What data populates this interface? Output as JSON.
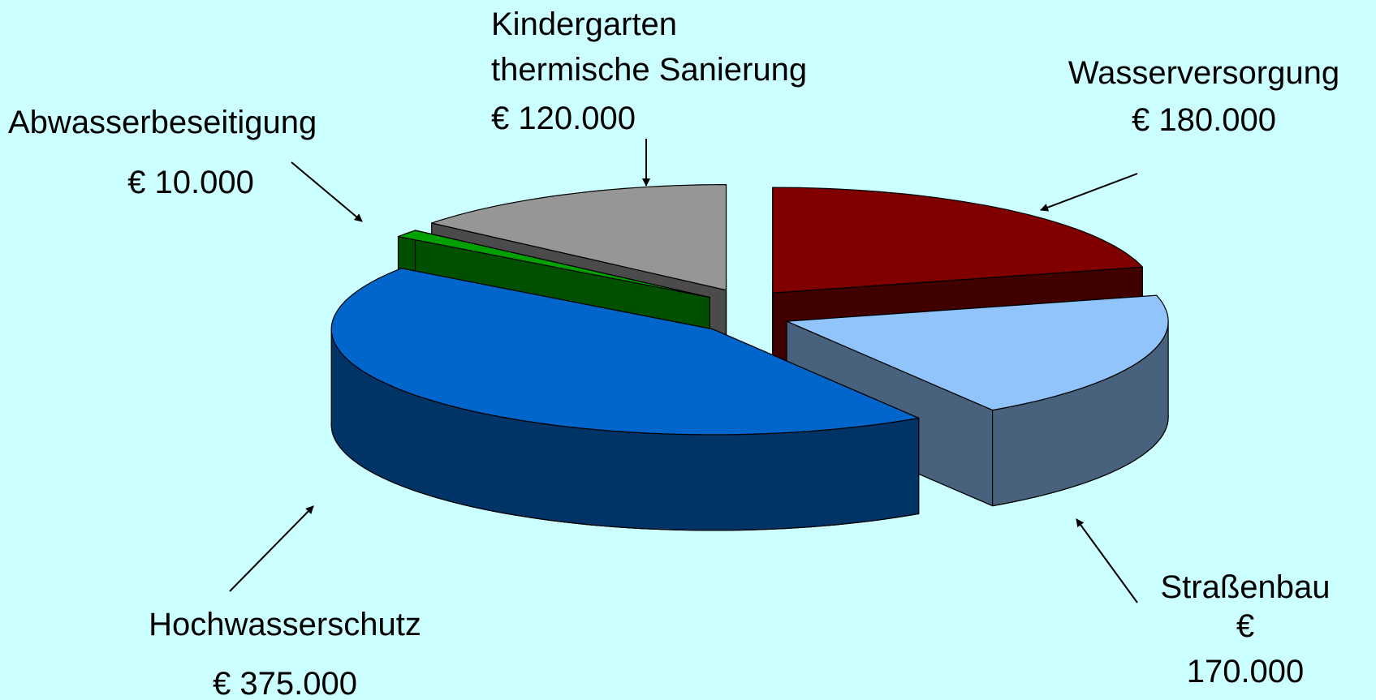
{
  "chart_data": {
    "type": "pie",
    "categories": [
      "Wasserversorgung",
      "Straßenbau",
      "Hochwasserschutz",
      "Abwasserbeseitigung",
      "Kindergarten\nthermische Sanierung"
    ],
    "values": [
      180000,
      170000,
      375000,
      10000,
      120000
    ],
    "value_labels": [
      "€ 180.000",
      "€ 170.000",
      "€ 375.000",
      "€ 10.000",
      "€ 120.000"
    ],
    "colors": [
      "#800000",
      "#90c4fa",
      "#0066cc",
      "#00a000",
      "#969696"
    ]
  }
}
